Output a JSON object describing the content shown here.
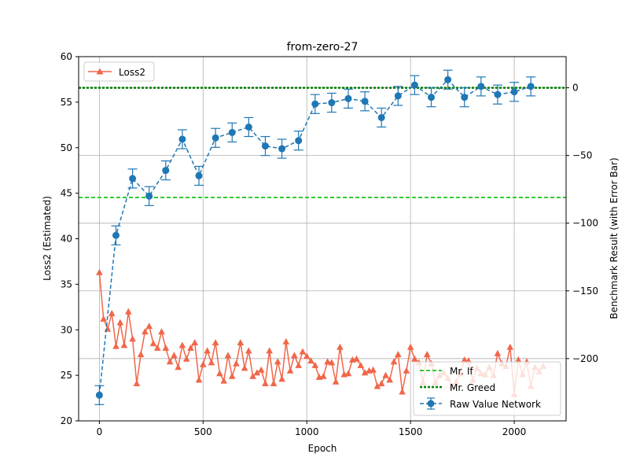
{
  "chart_data": {
    "type": "line",
    "title": "from-zero-27",
    "xlabel": "Epoch",
    "ylabel_left": "Loss2 (Estimated)",
    "ylabel_right": "Benchmark Result (with Error Bar)",
    "xlim": [
      -100,
      2250
    ],
    "ylim_left": [
      20,
      60
    ],
    "ylim_right": [
      -246,
      23
    ],
    "x_ticks": [
      0,
      500,
      1000,
      1500,
      2000
    ],
    "y_ticks_left": [
      20,
      25,
      30,
      35,
      40,
      45,
      50,
      55,
      60
    ],
    "y_ticks_right": [
      0,
      -50,
      -100,
      -150,
      -200
    ],
    "grid": true,
    "legend_left": {
      "placement": "upper-left",
      "entries": [
        "Loss2"
      ]
    },
    "legend_right": {
      "placement": "lower-right",
      "entries": [
        "Mr. If",
        "Mr. Greed",
        "Raw Value Network"
      ]
    },
    "colors": {
      "loss": "#f0674a",
      "network": "#1f77b4",
      "mr_if": "#33cc33",
      "mr_greed": "#008000"
    },
    "series": [
      {
        "name": "Loss2",
        "axis": "left",
        "x": [
          0,
          20,
          40,
          60,
          80,
          100,
          120,
          140,
          160,
          180,
          200,
          220,
          240,
          260,
          280,
          300,
          320,
          340,
          360,
          380,
          400,
          420,
          440,
          460,
          480,
          500,
          520,
          540,
          560,
          580,
          600,
          620,
          640,
          660,
          680,
          700,
          720,
          740,
          760,
          780,
          800,
          820,
          840,
          860,
          880,
          900,
          920,
          940,
          960,
          980,
          1000,
          1020,
          1040,
          1060,
          1080,
          1100,
          1120,
          1140,
          1160,
          1180,
          1200,
          1220,
          1240,
          1260,
          1280,
          1300,
          1320,
          1340,
          1360,
          1380,
          1400,
          1420,
          1440,
          1460,
          1480,
          1500,
          1520,
          1540,
          1560,
          1580,
          1600,
          1620,
          1640,
          1660,
          1680,
          1700,
          1720,
          1740,
          1760,
          1780,
          1800,
          1820,
          1840,
          1860,
          1880,
          1900,
          1920,
          1940,
          1960,
          1980,
          2000,
          2020,
          2040,
          2060,
          2080,
          2100,
          2120,
          2140
        ],
        "y": [
          36.3,
          31.2,
          30.1,
          31.8,
          28.2,
          30.8,
          28.3,
          32.0,
          29.0,
          24.1,
          27.3,
          29.8,
          30.4,
          28.5,
          28.0,
          29.8,
          28.0,
          26.5,
          27.2,
          25.9,
          28.3,
          26.8,
          28.0,
          28.6,
          24.5,
          26.2,
          27.7,
          26.4,
          28.6,
          25.2,
          24.4,
          27.2,
          24.9,
          26.3,
          28.6,
          25.8,
          27.7,
          24.9,
          25.3,
          25.6,
          24.1,
          27.7,
          24.1,
          26.5,
          24.6,
          28.7,
          25.5,
          27.2,
          26.1,
          27.6,
          27.1,
          26.6,
          26.1,
          24.8,
          24.9,
          26.5,
          26.4,
          24.3,
          28.1,
          25.1,
          25.2,
          26.7,
          26.8,
          26.1,
          25.3,
          25.5,
          25.6,
          23.8,
          24.1,
          25.0,
          24.5,
          26.5,
          27.3,
          23.2,
          25.5,
          28.1,
          26.8,
          26.4,
          24.2,
          27.3,
          26.3,
          24.2,
          25.0,
          25.3,
          24.7,
          23.8,
          24.3,
          25.2,
          26.7,
          26.6,
          24.5,
          25.8,
          25.2,
          25.1,
          25.9,
          25.0,
          27.4,
          26.3,
          26.0,
          28.1,
          22.9,
          26.7,
          25.1,
          26.5,
          23.8,
          25.9,
          25.4,
          26.0
        ]
      },
      {
        "name": "Raw Value Network",
        "axis": "right",
        "x": [
          0,
          80,
          160,
          240,
          320,
          400,
          480,
          560,
          640,
          720,
          800,
          880,
          960,
          1040,
          1120,
          1200,
          1280,
          1360,
          1440,
          1520,
          1600,
          1680,
          1760,
          1840,
          1920,
          2000,
          2080
        ],
        "y": [
          -227,
          -109,
          -67,
          -80,
          -61,
          -38,
          -65,
          -37,
          -33,
          -29,
          -43,
          -45,
          -39,
          -12,
          -11,
          -8,
          -10,
          -22,
          -6,
          2,
          -7,
          6,
          -7,
          1,
          -5,
          -3,
          1
        ],
        "err": [
          7,
          7,
          7,
          7,
          7,
          7,
          7,
          7,
          7,
          7,
          7,
          7,
          7,
          7,
          7,
          7,
          7,
          7,
          7,
          7,
          7,
          7,
          7,
          7,
          7,
          7,
          7
        ]
      }
    ],
    "hlines": [
      {
        "name": "Mr. If",
        "axis": "right",
        "value": -81,
        "style": "dashed"
      },
      {
        "name": "Mr. Greed",
        "axis": "right",
        "value": 0,
        "style": "dotted"
      }
    ]
  }
}
